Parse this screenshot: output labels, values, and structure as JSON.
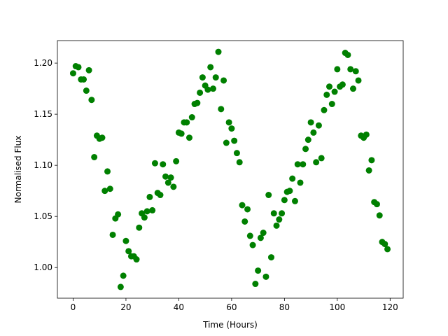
{
  "chart_data": {
    "type": "scatter",
    "xlabel": "Time (Hours)",
    "ylabel": "Normalised Flux",
    "x": [
      0,
      1,
      2,
      3,
      4,
      5,
      6,
      7,
      8,
      9,
      10,
      11,
      12,
      13,
      14,
      15,
      16,
      17,
      18,
      19,
      20,
      21,
      22,
      23,
      24,
      25,
      26,
      27,
      28,
      29,
      30,
      31,
      32,
      33,
      34,
      35,
      36,
      37,
      38,
      39,
      40,
      41,
      42,
      43,
      44,
      45,
      46,
      47,
      48,
      49,
      50,
      51,
      52,
      53,
      54,
      55,
      56,
      57,
      58,
      59,
      60,
      61,
      62,
      63,
      64,
      65,
      66,
      67,
      68,
      69,
      70,
      71,
      72,
      73,
      74,
      75,
      76,
      77,
      78,
      79,
      80,
      81,
      82,
      83,
      84,
      85,
      86,
      87,
      88,
      89,
      90,
      91,
      92,
      93,
      94,
      95,
      96,
      97,
      98,
      99,
      100,
      101,
      102,
      103,
      104,
      105,
      106,
      107,
      108,
      109,
      110,
      111,
      112,
      113,
      114,
      115,
      116,
      117,
      118,
      119
    ],
    "series": [
      {
        "color": "#008000",
        "values": [
          1.19,
          1.197,
          1.196,
          1.184,
          1.184,
          1.173,
          1.193,
          1.164,
          1.108,
          1.129,
          1.126,
          1.127,
          1.075,
          1.094,
          1.077,
          1.032,
          1.048,
          1.052,
          0.981,
          0.992,
          1.026,
          1.016,
          1.011,
          1.011,
          1.008,
          1.039,
          1.053,
          1.049,
          1.055,
          1.069,
          1.056,
          1.102,
          1.073,
          1.071,
          1.101,
          1.089,
          1.083,
          1.088,
          1.079,
          1.104,
          1.132,
          1.131,
          1.142,
          1.142,
          1.127,
          1.147,
          1.16,
          1.161,
          1.171,
          1.186,
          1.178,
          1.174,
          1.196,
          1.175,
          1.186,
          1.211,
          1.155,
          1.183,
          1.122,
          1.142,
          1.136,
          1.124,
          1.112,
          1.103,
          1.061,
          1.045,
          1.057,
          1.031,
          1.022,
          0.984,
          0.997,
          1.029,
          1.034,
          0.991,
          1.071,
          1.01,
          1.053,
          1.041,
          1.047,
          1.053,
          1.066,
          1.074,
          1.075,
          1.087,
          1.065,
          1.101,
          1.083,
          1.101,
          1.116,
          1.125,
          1.142,
          1.132,
          1.103,
          1.139,
          1.107,
          1.154,
          1.169,
          1.177,
          1.16,
          1.172,
          1.194,
          1.177,
          1.179,
          1.21,
          1.208,
          1.194,
          1.175,
          1.192,
          1.183,
          1.129,
          1.127,
          1.13,
          1.095,
          1.105,
          1.064,
          1.062,
          1.051,
          1.025,
          1.023,
          1.018
        ]
      }
    ],
    "xlim": [
      -5.95,
      124.95
    ],
    "xticks": [
      0,
      20,
      40,
      60,
      80,
      100,
      120
    ],
    "ylim": [
      0.97,
      1.222
    ],
    "yticks": [
      {
        "value": 1.0,
        "label": "1.00"
      },
      {
        "value": 1.05,
        "label": "1.05"
      },
      {
        "value": 1.1,
        "label": "1.10"
      },
      {
        "value": 1.15,
        "label": "1.15"
      },
      {
        "value": 1.2,
        "label": "1.20"
      }
    ],
    "grid": false
  }
}
